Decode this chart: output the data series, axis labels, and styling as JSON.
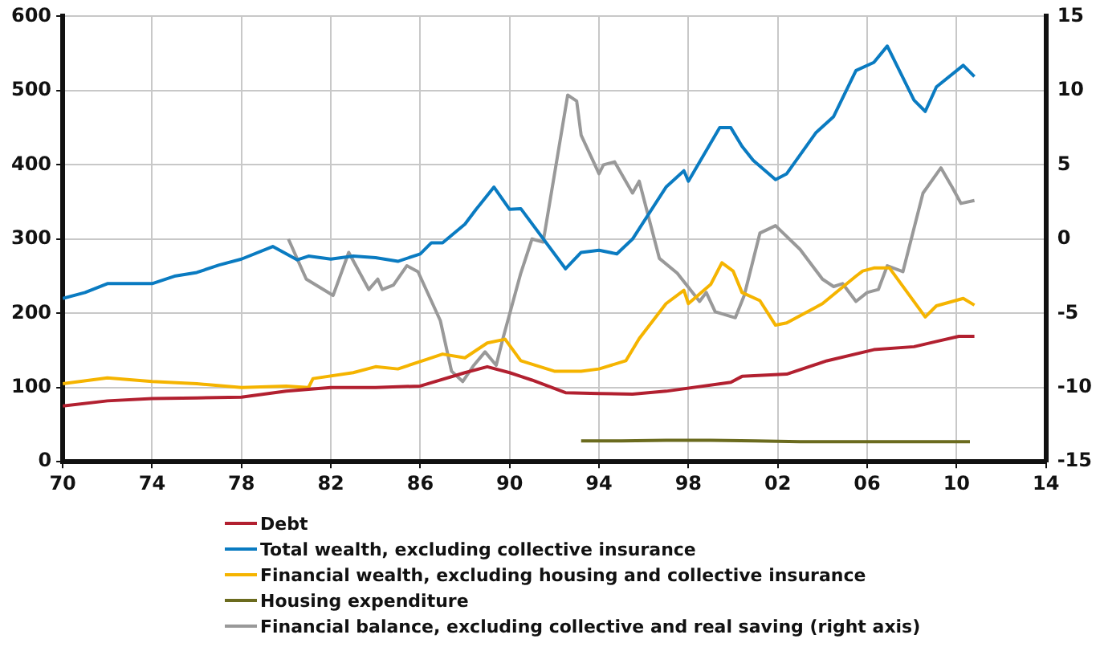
{
  "chart_data": {
    "type": "line",
    "xlim": [
      1970,
      2014
    ],
    "xticks": [
      {
        "value": 1970,
        "label": "70"
      },
      {
        "value": 1974,
        "label": "74"
      },
      {
        "value": 1978,
        "label": "78"
      },
      {
        "value": 1982,
        "label": "82"
      },
      {
        "value": 1986,
        "label": "86"
      },
      {
        "value": 1990,
        "label": "90"
      },
      {
        "value": 1994,
        "label": "94"
      },
      {
        "value": 1998,
        "label": "98"
      },
      {
        "value": 2002,
        "label": "02"
      },
      {
        "value": 2006,
        "label": "06"
      },
      {
        "value": 2010,
        "label": "10"
      },
      {
        "value": 2014,
        "label": "14"
      }
    ],
    "ylim": [
      0,
      600
    ],
    "yticks": [
      0,
      100,
      200,
      300,
      400,
      500,
      600
    ],
    "y2lim": [
      -15,
      15
    ],
    "y2ticks": [
      -15,
      -10,
      -5,
      0,
      5,
      10,
      15
    ],
    "grid": true,
    "legend": "bottom",
    "marker": "none",
    "line_style": "solid",
    "series": [
      {
        "name": "Debt",
        "color": "#b22030",
        "x": [
          1970,
          1972,
          1974,
          1976,
          1978,
          1980,
          1982,
          1984,
          1986,
          1988,
          1989,
          1990,
          1990.5,
          1991,
          1992.5,
          1994,
          1995.5,
          1997,
          1999.9,
          2000.4,
          2002.4,
          2004.2,
          2006.3,
          2008.1,
          2009.1,
          2010.1,
          2010.8
        ],
        "values": [
          75,
          82,
          85,
          86,
          87,
          95,
          100,
          100,
          102,
          120,
          128,
          120,
          115,
          110,
          93,
          92,
          91,
          95,
          107,
          115,
          118,
          136,
          151,
          155,
          162,
          169,
          169
        ]
      },
      {
        "name": "Total wealth, excluding collective insurance",
        "color": "#0a7bc1",
        "x": [
          1970,
          1971,
          1972,
          1973,
          1974,
          1975,
          1976,
          1977,
          1978,
          1979.4,
          1980.5,
          1981,
          1982,
          1983,
          1984,
          1985,
          1986,
          1986.5,
          1987,
          1988,
          1988.5,
          1989.3,
          1990,
          1990.5,
          1992.5,
          1993.2,
          1994,
          1994.8,
          1995.5,
          1997,
          1997.8,
          1998,
          1999.4,
          1999.9,
          2000.4,
          2000.9,
          2001.9,
          2002.4,
          2003.7,
          2004.5,
          2005.5,
          2006.3,
          2006.9,
          2008.1,
          2008.6,
          2009.1,
          2010.3,
          2010.8
        ],
        "values": [
          220,
          228,
          240,
          240,
          240,
          250,
          255,
          265,
          273,
          290,
          272,
          277,
          273,
          277,
          275,
          270,
          280,
          295,
          295,
          320,
          340,
          370,
          340,
          341,
          260,
          282,
          285,
          280,
          300,
          370,
          392,
          378,
          450,
          450,
          425,
          406,
          380,
          388,
          443,
          465,
          527,
          538,
          560,
          487,
          472,
          505,
          534,
          519
        ]
      },
      {
        "name": "Financial wealth, excluding housing and collective insurance",
        "color": "#f5b400",
        "x": [
          1970,
          1972,
          1974,
          1976,
          1978,
          1980,
          1981,
          1981.2,
          1983,
          1984,
          1985,
          1986,
          1987,
          1988,
          1988.5,
          1989,
          1989.8,
          1990.5,
          1992,
          1993.2,
          1994,
          1995.2,
          1995.8,
          1997,
          1997.8,
          1998,
          1999,
          1999.5,
          2000,
          2000.4,
          2001.2,
          2001.9,
          2002.4,
          2004,
          2005.5,
          2005.8,
          2006.3,
          2007,
          2008.6,
          2009.1,
          2010.3,
          2010.8
        ],
        "values": [
          105,
          113,
          108,
          105,
          100,
          102,
          100,
          112,
          120,
          128,
          125,
          135,
          145,
          140,
          150,
          160,
          165,
          136,
          122,
          122,
          125,
          136,
          166,
          213,
          231,
          213,
          239,
          268,
          257,
          228,
          217,
          184,
          187,
          213,
          250,
          257,
          261,
          261,
          195,
          210,
          220,
          211
        ]
      },
      {
        "name": "Housing expenditure",
        "color": "#6b6b1e",
        "x": [
          1993.2,
          1995,
          1997,
          1999,
          2001,
          2003,
          2005,
          2007,
          2009,
          2010.6
        ],
        "values": [
          28,
          28,
          29,
          29,
          28,
          27,
          27,
          27,
          27,
          27
        ]
      },
      {
        "name": "Financial balance, excluding collective and real saving (right axis)",
        "color": "#999999",
        "axis": "y2",
        "x": [
          1980.1,
          1980.9,
          1982.1,
          1982.8,
          1983.7,
          1984.1,
          1984.3,
          1984.8,
          1985.4,
          1985.9,
          1986.9,
          1987.4,
          1987.9,
          1988.4,
          1988.9,
          1989.4,
          1989.7,
          1990.5,
          1991,
          1991.5,
          1992.6,
          1993,
          1993.2,
          1994,
          1994.2,
          1994.7,
          1995.5,
          1995.8,
          1996.7,
          1997.5,
          1998.5,
          1998.8,
          1999.2,
          2000.1,
          2000.5,
          2001.2,
          2001.9,
          2003,
          2004,
          2004.5,
          2004.9,
          2005.5,
          2006,
          2006.5,
          2006.9,
          2007.6,
          2008.5,
          2009.3,
          2009.8,
          2010.2,
          2010.8
        ],
        "values": [
          0,
          -2.7,
          -3.8,
          -0.9,
          -3.4,
          -2.7,
          -3.4,
          -3.1,
          -1.8,
          -2.2,
          -5.5,
          -8.9,
          -9.6,
          -8.5,
          -7.6,
          -8.5,
          -6.7,
          -2.3,
          0,
          -0.2,
          9.7,
          9.3,
          7,
          4.4,
          5,
          5.2,
          3.1,
          3.9,
          -1.3,
          -2.3,
          -4.2,
          -3.6,
          -4.9,
          -5.3,
          -3.8,
          0.4,
          0.9,
          -0.7,
          -2.7,
          -3.2,
          -3,
          -4.2,
          -3.6,
          -3.4,
          -1.8,
          -2.2,
          3.1,
          4.8,
          3.5,
          2.4,
          2.6
        ]
      }
    ]
  }
}
